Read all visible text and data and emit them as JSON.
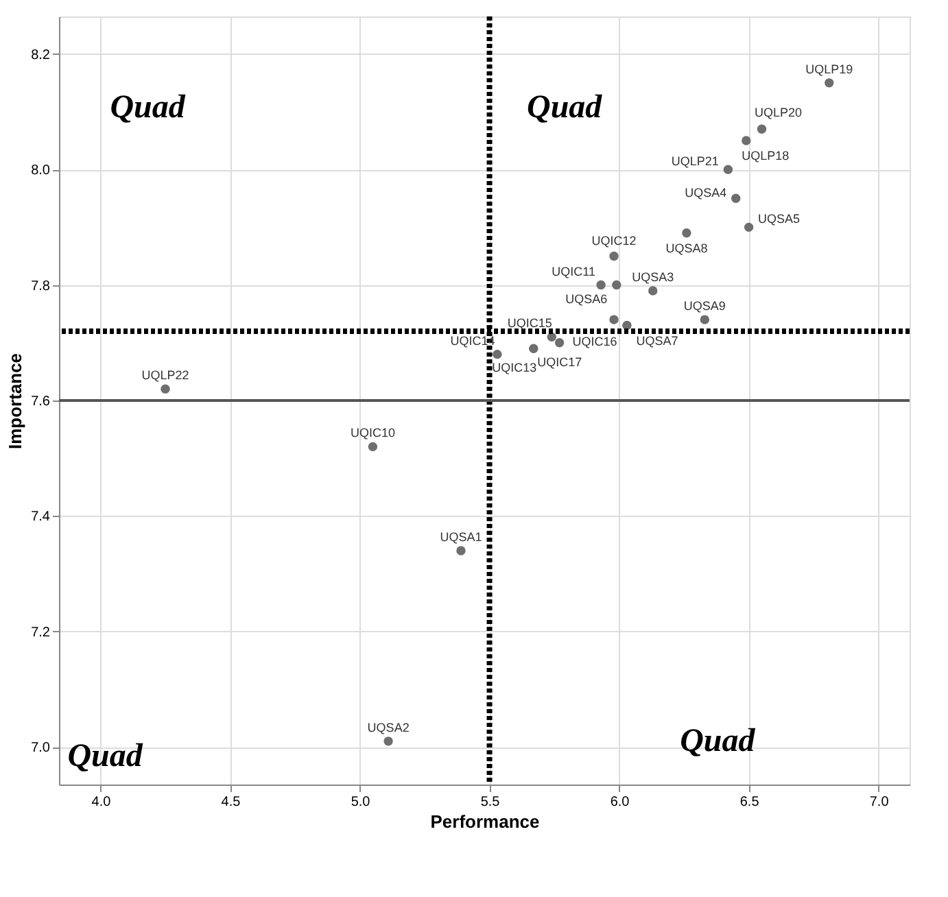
{
  "chart_data": {
    "type": "scatter",
    "xlabel": "Performance",
    "ylabel": "Importance",
    "x": [
      6.81,
      6.55,
      6.49,
      6.42,
      6.45,
      6.5,
      6.26,
      5.98,
      5.93,
      5.99,
      6.13,
      6.33,
      5.98,
      6.03,
      5.74,
      5.77,
      5.67,
      5.53,
      4.25,
      5.05,
      5.39,
      5.11
    ],
    "series": [
      {
        "color": "#6e6e6e",
        "values": [
          8.15,
          8.07,
          8.05,
          8.0,
          7.95,
          7.9,
          7.89,
          7.85,
          7.8,
          7.8,
          7.79,
          7.74,
          7.74,
          7.73,
          7.71,
          7.7,
          7.69,
          7.68,
          7.62,
          7.52,
          7.34,
          7.01
        ]
      }
    ],
    "xlim": [
      3.84,
      7.12
    ],
    "xticks": [
      {
        "value": 4,
        "label": "4.0"
      },
      4.5,
      {
        "value": 5,
        "label": "5.0"
      },
      5.5,
      {
        "value": 6,
        "label": "6.0"
      },
      6.5,
      {
        "value": 7,
        "label": "7.0"
      }
    ],
    "ylim": [
      6.935,
      8.265
    ],
    "yticks": [
      {
        "value": 7,
        "label": "7.0"
      },
      7.2,
      7.4,
      7.6,
      7.8,
      {
        "value": 8,
        "label": "8.0"
      },
      8.2
    ],
    "grid": true,
    "marker": "circle",
    "ref_lines": [
      {
        "axis": "x",
        "value": 5.5,
        "line_style": "dotted",
        "color": "#000000"
      },
      {
        "axis": "y",
        "value": 7.72,
        "line_style": "dotted",
        "color": "#000000"
      },
      {
        "axis": "y",
        "value": 7.6,
        "line_style": "solid",
        "color": "#555555"
      }
    ],
    "annotations": [
      "Quad",
      "Quad",
      "Quad",
      "Quad",
      {
        "text": "UQLP19",
        "x": 6.81,
        "y": 8.15
      },
      {
        "text": "UQLP20",
        "x": 6.55,
        "y": 8.07
      },
      {
        "text": "UQLP18",
        "x": 6.49,
        "y": 8.05
      },
      {
        "text": "UQLP21",
        "x": 6.42,
        "y": 8.0
      },
      {
        "text": "UQSA4",
        "x": 6.45,
        "y": 7.95
      },
      {
        "text": "UQSA5",
        "x": 6.5,
        "y": 7.9
      },
      {
        "text": "UQSA8",
        "x": 6.26,
        "y": 7.89
      },
      {
        "text": "UQIC12",
        "x": 5.98,
        "y": 7.85
      },
      {
        "text": "UQIC11",
        "x": 5.93,
        "y": 7.8
      },
      {
        "text": "UQSA6",
        "x": 5.99,
        "y": 7.8
      },
      {
        "text": "UQSA3",
        "x": 6.13,
        "y": 7.79
      },
      {
        "text": "UQSA9",
        "x": 6.33,
        "y": 7.74
      },
      {
        "text": "UQIC16",
        "x": 5.98,
        "y": 7.74
      },
      {
        "text": "UQSA7",
        "x": 6.03,
        "y": 7.73
      },
      {
        "text": "UQIC15",
        "x": 5.74,
        "y": 7.71
      },
      {
        "text": "UQIC17",
        "x": 5.77,
        "y": 7.7
      },
      {
        "text": "UQIC13",
        "x": 5.67,
        "y": 7.69
      },
      {
        "text": "UQIC14",
        "x": 5.53,
        "y": 7.68
      },
      {
        "text": "UQLP22",
        "x": 4.25,
        "y": 7.62
      },
      {
        "text": "UQIC10",
        "x": 5.05,
        "y": 7.52
      },
      {
        "text": "UQSA1",
        "x": 5.39,
        "y": 7.34
      },
      {
        "text": "UQSA2",
        "x": 5.11,
        "y": 7.01
      }
    ]
  }
}
